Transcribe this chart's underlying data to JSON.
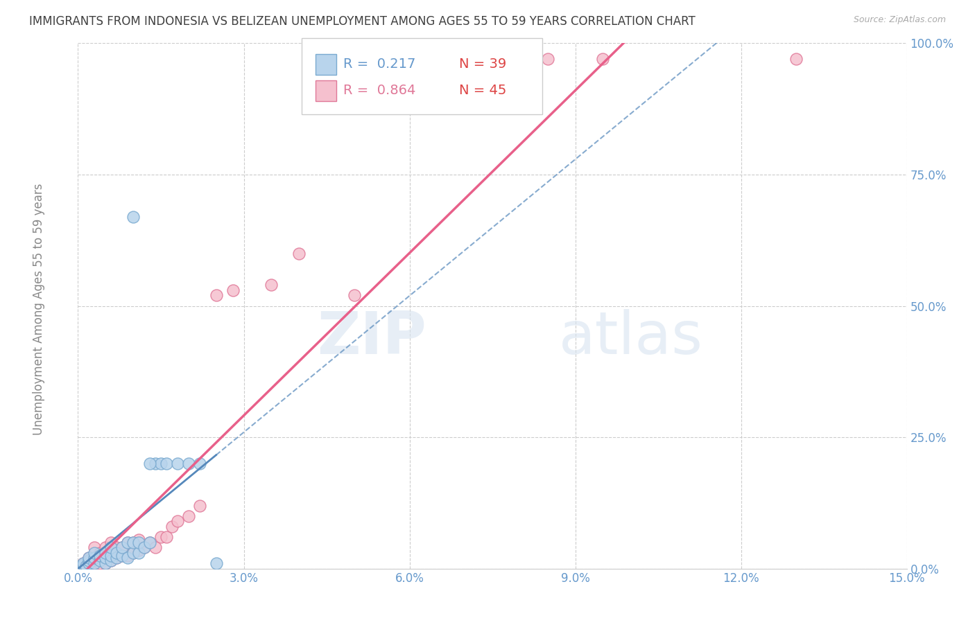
{
  "title": "IMMIGRANTS FROM INDONESIA VS BELIZEAN UNEMPLOYMENT AMONG AGES 55 TO 59 YEARS CORRELATION CHART",
  "source": "Source: ZipAtlas.com",
  "ylabel": "Unemployment Among Ages 55 to 59 years",
  "xlim": [
    0.0,
    0.15
  ],
  "ylim": [
    0.0,
    1.0
  ],
  "xticks": [
    0.0,
    0.03,
    0.06,
    0.09,
    0.12,
    0.15
  ],
  "xtick_labels": [
    "0.0%",
    "3.0%",
    "6.0%",
    "9.0%",
    "12.0%",
    "15.0%"
  ],
  "yticks": [
    0.0,
    0.25,
    0.5,
    0.75,
    1.0
  ],
  "ytick_labels": [
    "0.0%",
    "25.0%",
    "50.0%",
    "75.0%",
    "100.0%"
  ],
  "blue_fill": "#b8d4ec",
  "blue_edge": "#7aaad0",
  "pink_fill": "#f5c0ce",
  "pink_edge": "#e07898",
  "blue_line_color": "#5588bb",
  "pink_line_color": "#e8608a",
  "R_blue": 0.217,
  "N_blue": 39,
  "R_pink": 0.864,
  "N_pink": 45,
  "blue_scatter_x": [
    0.0005,
    0.001,
    0.001,
    0.0015,
    0.002,
    0.002,
    0.002,
    0.003,
    0.003,
    0.003,
    0.004,
    0.004,
    0.005,
    0.005,
    0.005,
    0.006,
    0.006,
    0.006,
    0.007,
    0.007,
    0.008,
    0.008,
    0.009,
    0.009,
    0.01,
    0.01,
    0.011,
    0.011,
    0.012,
    0.013,
    0.014,
    0.015,
    0.016,
    0.018,
    0.02,
    0.022,
    0.025,
    0.013,
    0.01
  ],
  "blue_scatter_y": [
    0.005,
    0.008,
    0.01,
    0.005,
    0.01,
    0.015,
    0.02,
    0.01,
    0.02,
    0.03,
    0.015,
    0.025,
    0.01,
    0.02,
    0.03,
    0.015,
    0.025,
    0.04,
    0.02,
    0.03,
    0.025,
    0.04,
    0.02,
    0.05,
    0.03,
    0.05,
    0.03,
    0.05,
    0.04,
    0.05,
    0.2,
    0.2,
    0.2,
    0.2,
    0.2,
    0.2,
    0.01,
    0.2,
    0.67
  ],
  "pink_scatter_x": [
    0.0005,
    0.001,
    0.001,
    0.0015,
    0.002,
    0.002,
    0.003,
    0.003,
    0.003,
    0.004,
    0.004,
    0.005,
    0.005,
    0.005,
    0.006,
    0.006,
    0.006,
    0.007,
    0.007,
    0.008,
    0.008,
    0.009,
    0.009,
    0.01,
    0.01,
    0.011,
    0.011,
    0.012,
    0.013,
    0.014,
    0.015,
    0.016,
    0.017,
    0.018,
    0.02,
    0.022,
    0.025,
    0.028,
    0.035,
    0.04,
    0.05,
    0.065,
    0.085,
    0.095,
    0.13
  ],
  "pink_scatter_y": [
    0.005,
    0.008,
    0.01,
    0.005,
    0.01,
    0.02,
    0.01,
    0.02,
    0.04,
    0.01,
    0.03,
    0.01,
    0.02,
    0.04,
    0.015,
    0.03,
    0.05,
    0.02,
    0.04,
    0.025,
    0.04,
    0.025,
    0.05,
    0.03,
    0.05,
    0.035,
    0.055,
    0.04,
    0.05,
    0.04,
    0.06,
    0.06,
    0.08,
    0.09,
    0.1,
    0.12,
    0.52,
    0.53,
    0.54,
    0.6,
    0.52,
    0.97,
    0.97,
    0.97,
    0.97
  ],
  "watermark_zip": "ZIP",
  "watermark_atlas": "atlas",
  "background_color": "#ffffff",
  "grid_color": "#cccccc",
  "title_color": "#404040",
  "axis_tick_color": "#6699cc",
  "ylabel_color": "#888888",
  "marker_size": 150,
  "legend_fontsize": 14,
  "title_fontsize": 12,
  "axis_label_fontsize": 12,
  "tick_fontsize": 12
}
